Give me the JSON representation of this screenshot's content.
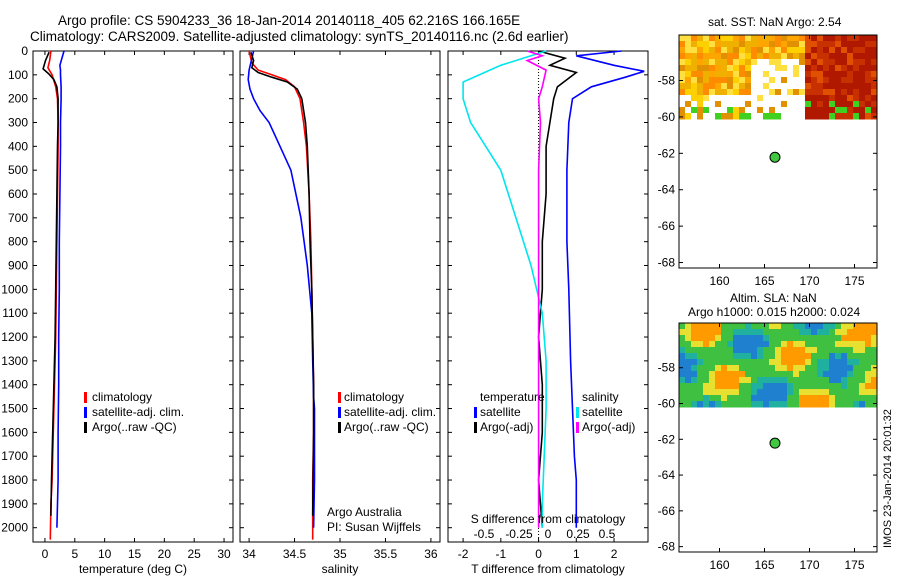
{
  "header": {
    "line1": "Argo profile: CS 5904233_36 18-Jan-2014 20140118_405 62.216S 166.165E",
    "line2": "Climatology: CARS2009. Satellite-adjusted climatology: synTS_20140116.nc (2.6d earlier)"
  },
  "colors": {
    "climatology": "#ff0000",
    "satellite": "#0000ff",
    "argo": "#000000",
    "satellite_s": "#00e5ee",
    "argo_s": "#ff00ff"
  },
  "legend": {
    "climatology": "climatology",
    "satellite": "satellite-adj. clim.",
    "argo": "Argo(..raw -QC)"
  },
  "legend3": {
    "temperature": "temperature",
    "salinity": "salinity",
    "satellite": "satellite",
    "argo": "Argo(-adj)"
  },
  "credits": {
    "org": "Argo Australia",
    "pi": "PI: Susan Wijffels"
  },
  "right_panels": {
    "sst_title": "sat. SST: NaN Argo: 2.54",
    "sla_title1": "Altim. SLA: NaN",
    "sla_title2": "Argo h1000: 0.015 h2000: 0.024",
    "stamp": "IMOS 23-Jan-2014 20:01:32"
  },
  "chart_data": [
    {
      "type": "line",
      "name": "temperature",
      "xlabel": "temperature (deg C)",
      "ylabel": "",
      "xlim": [
        -2,
        31.5
      ],
      "ylim": [
        2060,
        0
      ],
      "xticks": [
        0,
        5,
        10,
        15,
        20,
        25,
        30
      ],
      "yticks": [
        0,
        100,
        200,
        300,
        400,
        500,
        600,
        700,
        800,
        900,
        1000,
        1100,
        1200,
        1300,
        1400,
        1500,
        1600,
        1700,
        1800,
        1900,
        2000
      ],
      "series": [
        {
          "name": "climatology",
          "color": "#ff0000",
          "x": [
            1.0,
            0.8,
            0.5,
            1.2,
            1.8,
            2.1,
            2.2,
            2.2,
            2.1,
            2.0,
            1.9,
            1.8,
            1.6,
            1.5,
            1.4,
            1.3,
            1.2,
            1.0,
            0.9
          ],
          "y": [
            0,
            40,
            70,
            100,
            150,
            200,
            300,
            400,
            600,
            800,
            1000,
            1200,
            1400,
            1500,
            1600,
            1700,
            1800,
            1900,
            2050
          ]
        },
        {
          "name": "satellite-adj. clim.",
          "color": "#0000ff",
          "x": [
            3.2,
            2.5,
            2.6,
            2.6,
            2.7,
            2.7,
            2.6,
            2.6,
            2.5,
            2.4,
            2.4,
            2.3,
            2.3,
            2.2,
            2.2,
            2.1,
            2.0
          ],
          "y": [
            0,
            60,
            80,
            100,
            150,
            200,
            300,
            400,
            600,
            800,
            1000,
            1200,
            1400,
            1600,
            1800,
            1900,
            2000
          ]
        },
        {
          "name": "Argo(..raw -QC)",
          "color": "#000000",
          "x": [
            0.7,
            0.1,
            -0.3,
            0.6,
            1.5,
            2.0,
            2.2,
            2.2,
            2.1,
            2.0,
            1.9,
            1.8,
            1.7,
            1.5,
            1.4,
            1.3,
            1.2,
            1.1,
            1.0
          ],
          "y": [
            5,
            40,
            75,
            95,
            120,
            150,
            200,
            300,
            400,
            600,
            800,
            1000,
            1200,
            1400,
            1500,
            1600,
            1700,
            1800,
            1950
          ]
        }
      ]
    },
    {
      "type": "line",
      "name": "salinity",
      "xlabel": "salinity",
      "xlim": [
        33.9,
        36.1
      ],
      "ylim": [
        2060,
        0
      ],
      "xticks": [
        34,
        34.5,
        35,
        35.5,
        36
      ],
      "series": [
        {
          "name": "climatology",
          "color": "#ff0000",
          "x": [
            34.0,
            34.03,
            34.1,
            34.25,
            34.4,
            34.5,
            34.56,
            34.6,
            34.63,
            34.66,
            34.68,
            34.69,
            34.7,
            34.71,
            34.71,
            34.71,
            34.7,
            34.7
          ],
          "y": [
            0,
            50,
            80,
            100,
            120,
            150,
            200,
            300,
            400,
            600,
            800,
            1000,
            1200,
            1400,
            1500,
            1600,
            1800,
            2050
          ]
        },
        {
          "name": "satellite-adj. clim.",
          "color": "#0000ff",
          "x": [
            34.05,
            34.0,
            33.99,
            34.01,
            34.05,
            34.12,
            34.22,
            34.34,
            34.46,
            34.57,
            34.64,
            34.69,
            34.7,
            34.71,
            34.72,
            34.72,
            34.72,
            34.71
          ],
          "y": [
            0,
            80,
            120,
            160,
            200,
            250,
            300,
            400,
            500,
            700,
            900,
            1100,
            1300,
            1450,
            1500,
            1600,
            1800,
            2000
          ]
        },
        {
          "name": "Argo(..raw -QC)",
          "color": "#000000",
          "x": [
            34.02,
            34.05,
            34.03,
            34.1,
            34.25,
            34.42,
            34.53,
            34.58,
            34.62,
            34.64,
            34.66,
            34.67,
            34.69,
            34.7,
            34.71,
            34.71,
            34.7
          ],
          "y": [
            5,
            40,
            70,
            90,
            110,
            130,
            160,
            200,
            300,
            400,
            600,
            800,
            1000,
            1200,
            1400,
            1600,
            1950
          ]
        }
      ]
    },
    {
      "type": "line",
      "name": "difference",
      "xlabel": "T difference from climatology",
      "x2label": "S difference from climatology",
      "xlim": [
        -2.4,
        2.9
      ],
      "ylim": [
        2060,
        0
      ],
      "xticks": [
        -2,
        -1,
        0,
        1,
        2
      ],
      "x2ticks": [
        "-0.5",
        "-0.25",
        "0",
        "0.25",
        "0.5"
      ],
      "series": [
        {
          "name": "temperature satellite",
          "color": "#0000ff",
          "x": [
            2.2,
            1.0,
            2.0,
            2.8,
            2.3,
            1.4,
            0.9,
            0.8,
            0.75,
            0.75,
            0.8,
            0.85,
            0.9,
            0.95,
            1.0,
            1.0,
            1.0
          ],
          "y": [
            0,
            20,
            60,
            85,
            110,
            150,
            200,
            300,
            500,
            800,
            1000,
            1300,
            1500,
            1700,
            1800,
            1900,
            2000
          ]
        },
        {
          "name": "temperature Argo(-adj)",
          "color": "#000000",
          "x": [
            0.0,
            0.7,
            0.3,
            1.0,
            0.5,
            0.4,
            0.3,
            0.2,
            0.2,
            0.1,
            0.1,
            0.0,
            0.1,
            0.1,
            0.0,
            0.1
          ],
          "y": [
            0,
            30,
            60,
            90,
            150,
            200,
            300,
            400,
            600,
            800,
            1000,
            1200,
            1400,
            1600,
            1800,
            2000
          ]
        },
        {
          "name": "salinity satellite",
          "color": "#00e5ee",
          "x": [
            0.2,
            -1.0,
            -2.0,
            -2.0,
            -1.8,
            -1.4,
            -1.0,
            -0.6,
            -0.2,
            0.1,
            0.2,
            0.2,
            0.15,
            0.1,
            0.1
          ],
          "y": [
            0,
            60,
            130,
            200,
            300,
            400,
            500,
            700,
            900,
            1100,
            1300,
            1500,
            1700,
            1900,
            2000
          ]
        },
        {
          "name": "salinity Argo(-adj)",
          "color": "#ff00ff",
          "x": [
            -0.3,
            0.1,
            -0.3,
            0.2,
            0.1,
            0.0,
            0.05,
            0.0,
            0.0,
            0.0,
            0.0,
            0.0,
            0.0,
            0.0
          ],
          "y": [
            0,
            20,
            40,
            80,
            150,
            200,
            300,
            500,
            800,
            1000,
            1200,
            1500,
            1800,
            2000
          ]
        }
      ]
    },
    {
      "type": "heatmap",
      "name": "sat. SST",
      "xlim": [
        155.5,
        177.5
      ],
      "ylim": [
        -68.3,
        -55.5
      ],
      "xticks": [
        160,
        165,
        170,
        175
      ],
      "yticks": [
        -58,
        -60,
        -62,
        -64,
        -66,
        -68
      ],
      "data_lat_range": [
        -60,
        -55.5
      ],
      "argo_point": {
        "lon": 166.165,
        "lat": -62.216
      }
    },
    {
      "type": "heatmap",
      "name": "Altim. SLA",
      "xlim": [
        155.5,
        177.5
      ],
      "ylim": [
        -68.3,
        -55.5
      ],
      "xticks": [
        160,
        165,
        170,
        175
      ],
      "yticks": [
        -58,
        -60,
        -62,
        -64,
        -66,
        -68
      ],
      "data_lat_range": [
        -60,
        -55.5
      ],
      "argo_point": {
        "lon": 166.165,
        "lat": -62.216
      }
    }
  ]
}
